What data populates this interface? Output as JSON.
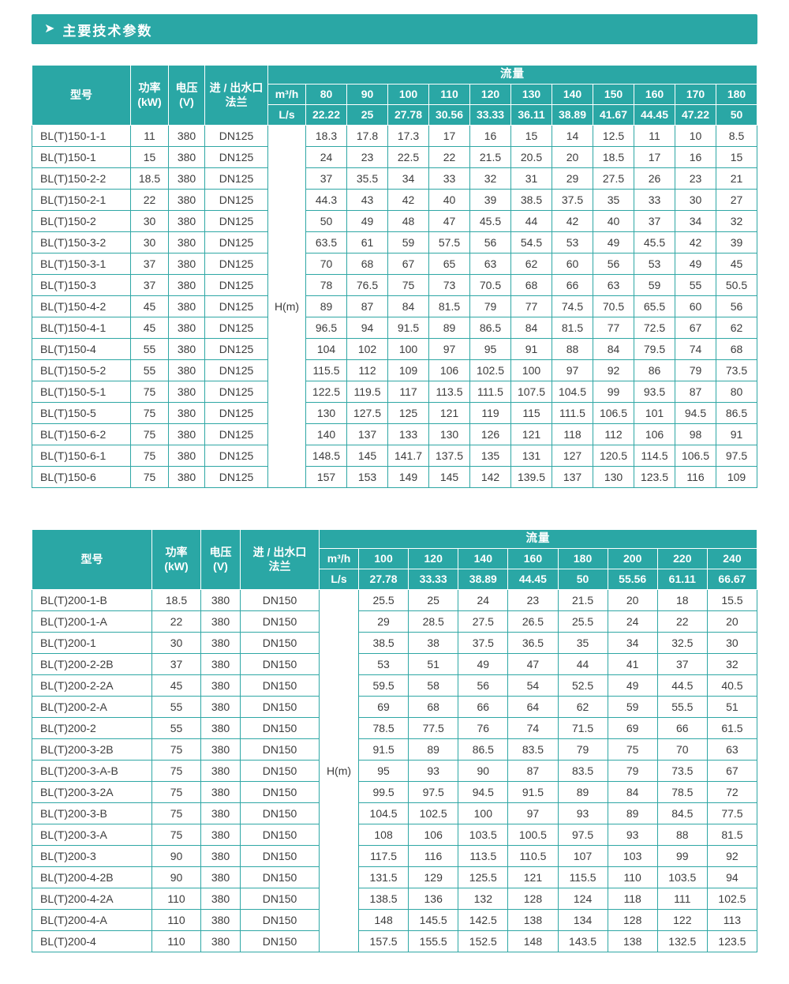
{
  "page": {
    "title": "主要技术参数",
    "arrow_icon": "➤",
    "accent_color": "#2aa7a5"
  },
  "table1": {
    "headers": {
      "model": "型号",
      "power": "功率\n(kW)",
      "voltage": "电压\n(V)",
      "flange": "进 / 出水口\n法兰",
      "flow": "流量",
      "m3h_label": "m³/h",
      "ls_label": "L/s",
      "head_label": "H(m)"
    },
    "m3h_values": [
      "80",
      "90",
      "100",
      "110",
      "120",
      "130",
      "140",
      "150",
      "160",
      "170",
      "180"
    ],
    "ls_values": [
      "22.22",
      "25",
      "27.78",
      "30.56",
      "33.33",
      "36.11",
      "38.89",
      "41.67",
      "44.45",
      "47.22",
      "50"
    ],
    "rows": [
      {
        "model": "BL(T)150-1-1",
        "power": "11",
        "voltage": "380",
        "flange": "DN125",
        "values": [
          "18.3",
          "17.8",
          "17.3",
          "17",
          "16",
          "15",
          "14",
          "12.5",
          "11",
          "10",
          "8.5"
        ]
      },
      {
        "model": "BL(T)150-1",
        "power": "15",
        "voltage": "380",
        "flange": "DN125",
        "values": [
          "24",
          "23",
          "22.5",
          "22",
          "21.5",
          "20.5",
          "20",
          "18.5",
          "17",
          "16",
          "15"
        ]
      },
      {
        "model": "BL(T)150-2-2",
        "power": "18.5",
        "voltage": "380",
        "flange": "DN125",
        "values": [
          "37",
          "35.5",
          "34",
          "33",
          "32",
          "31",
          "29",
          "27.5",
          "26",
          "23",
          "21"
        ]
      },
      {
        "model": "BL(T)150-2-1",
        "power": "22",
        "voltage": "380",
        "flange": "DN125",
        "values": [
          "44.3",
          "43",
          "42",
          "40",
          "39",
          "38.5",
          "37.5",
          "35",
          "33",
          "30",
          "27"
        ]
      },
      {
        "model": "BL(T)150-2",
        "power": "30",
        "voltage": "380",
        "flange": "DN125",
        "values": [
          "50",
          "49",
          "48",
          "47",
          "45.5",
          "44",
          "42",
          "40",
          "37",
          "34",
          "32"
        ]
      },
      {
        "model": "BL(T)150-3-2",
        "power": "30",
        "voltage": "380",
        "flange": "DN125",
        "values": [
          "63.5",
          "61",
          "59",
          "57.5",
          "56",
          "54.5",
          "53",
          "49",
          "45.5",
          "42",
          "39"
        ]
      },
      {
        "model": "BL(T)150-3-1",
        "power": "37",
        "voltage": "380",
        "flange": "DN125",
        "values": [
          "70",
          "68",
          "67",
          "65",
          "63",
          "62",
          "60",
          "56",
          "53",
          "49",
          "45"
        ]
      },
      {
        "model": "BL(T)150-3",
        "power": "37",
        "voltage": "380",
        "flange": "DN125",
        "values": [
          "78",
          "76.5",
          "75",
          "73",
          "70.5",
          "68",
          "66",
          "63",
          "59",
          "55",
          "50.5"
        ]
      },
      {
        "model": "BL(T)150-4-2",
        "power": "45",
        "voltage": "380",
        "flange": "DN125",
        "values": [
          "89",
          "87",
          "84",
          "81.5",
          "79",
          "77",
          "74.5",
          "70.5",
          "65.5",
          "60",
          "56"
        ]
      },
      {
        "model": "BL(T)150-4-1",
        "power": "45",
        "voltage": "380",
        "flange": "DN125",
        "values": [
          "96.5",
          "94",
          "91.5",
          "89",
          "86.5",
          "84",
          "81.5",
          "77",
          "72.5",
          "67",
          "62"
        ]
      },
      {
        "model": "BL(T)150-4",
        "power": "55",
        "voltage": "380",
        "flange": "DN125",
        "values": [
          "104",
          "102",
          "100",
          "97",
          "95",
          "91",
          "88",
          "84",
          "79.5",
          "74",
          "68"
        ]
      },
      {
        "model": "BL(T)150-5-2",
        "power": "55",
        "voltage": "380",
        "flange": "DN125",
        "values": [
          "115.5",
          "112",
          "109",
          "106",
          "102.5",
          "100",
          "97",
          "92",
          "86",
          "79",
          "73.5"
        ]
      },
      {
        "model": "BL(T)150-5-1",
        "power": "75",
        "voltage": "380",
        "flange": "DN125",
        "values": [
          "122.5",
          "119.5",
          "117",
          "113.5",
          "111.5",
          "107.5",
          "104.5",
          "99",
          "93.5",
          "87",
          "80"
        ]
      },
      {
        "model": "BL(T)150-5",
        "power": "75",
        "voltage": "380",
        "flange": "DN125",
        "values": [
          "130",
          "127.5",
          "125",
          "121",
          "119",
          "115",
          "111.5",
          "106.5",
          "101",
          "94.5",
          "86.5"
        ]
      },
      {
        "model": "BL(T)150-6-2",
        "power": "75",
        "voltage": "380",
        "flange": "DN125",
        "values": [
          "140",
          "137",
          "133",
          "130",
          "126",
          "121",
          "118",
          "112",
          "106",
          "98",
          "91"
        ]
      },
      {
        "model": "BL(T)150-6-1",
        "power": "75",
        "voltage": "380",
        "flange": "DN125",
        "values": [
          "148.5",
          "145",
          "141.7",
          "137.5",
          "135",
          "131",
          "127",
          "120.5",
          "114.5",
          "106.5",
          "97.5"
        ]
      },
      {
        "model": "BL(T)150-6",
        "power": "75",
        "voltage": "380",
        "flange": "DN125",
        "values": [
          "157",
          "153",
          "149",
          "145",
          "142",
          "139.5",
          "137",
          "130",
          "123.5",
          "116",
          "109"
        ]
      }
    ]
  },
  "table2": {
    "headers": {
      "model": "型号",
      "power": "功率\n(kW)",
      "voltage": "电压\n(V)",
      "flange": "进 / 出水口\n法兰",
      "flow": "流量",
      "m3h_label": "m³/h",
      "ls_label": "L/s",
      "head_label": "H(m)"
    },
    "m3h_values": [
      "100",
      "120",
      "140",
      "160",
      "180",
      "200",
      "220",
      "240"
    ],
    "ls_values": [
      "27.78",
      "33.33",
      "38.89",
      "44.45",
      "50",
      "55.56",
      "61.11",
      "66.67"
    ],
    "rows": [
      {
        "model": "BL(T)200-1-B",
        "power": "18.5",
        "voltage": "380",
        "flange": "DN150",
        "values": [
          "25.5",
          "25",
          "24",
          "23",
          "21.5",
          "20",
          "18",
          "15.5"
        ]
      },
      {
        "model": "BL(T)200-1-A",
        "power": "22",
        "voltage": "380",
        "flange": "DN150",
        "values": [
          "29",
          "28.5",
          "27.5",
          "26.5",
          "25.5",
          "24",
          "22",
          "20"
        ]
      },
      {
        "model": "BL(T)200-1",
        "power": "30",
        "voltage": "380",
        "flange": "DN150",
        "values": [
          "38.5",
          "38",
          "37.5",
          "36.5",
          "35",
          "34",
          "32.5",
          "30"
        ]
      },
      {
        "model": "BL(T)200-2-2B",
        "power": "37",
        "voltage": "380",
        "flange": "DN150",
        "values": [
          "53",
          "51",
          "49",
          "47",
          "44",
          "41",
          "37",
          "32"
        ]
      },
      {
        "model": "BL(T)200-2-2A",
        "power": "45",
        "voltage": "380",
        "flange": "DN150",
        "values": [
          "59.5",
          "58",
          "56",
          "54",
          "52.5",
          "49",
          "44.5",
          "40.5"
        ]
      },
      {
        "model": "BL(T)200-2-A",
        "power": "55",
        "voltage": "380",
        "flange": "DN150",
        "values": [
          "69",
          "68",
          "66",
          "64",
          "62",
          "59",
          "55.5",
          "51"
        ]
      },
      {
        "model": "BL(T)200-2",
        "power": "55",
        "voltage": "380",
        "flange": "DN150",
        "values": [
          "78.5",
          "77.5",
          "76",
          "74",
          "71.5",
          "69",
          "66",
          "61.5"
        ]
      },
      {
        "model": "BL(T)200-3-2B",
        "power": "75",
        "voltage": "380",
        "flange": "DN150",
        "values": [
          "91.5",
          "89",
          "86.5",
          "83.5",
          "79",
          "75",
          "70",
          "63"
        ]
      },
      {
        "model": "BL(T)200-3-A-B",
        "power": "75",
        "voltage": "380",
        "flange": "DN150",
        "values": [
          "95",
          "93",
          "90",
          "87",
          "83.5",
          "79",
          "73.5",
          "67"
        ]
      },
      {
        "model": "BL(T)200-3-2A",
        "power": "75",
        "voltage": "380",
        "flange": "DN150",
        "values": [
          "99.5",
          "97.5",
          "94.5",
          "91.5",
          "89",
          "84",
          "78.5",
          "72"
        ]
      },
      {
        "model": "BL(T)200-3-B",
        "power": "75",
        "voltage": "380",
        "flange": "DN150",
        "values": [
          "104.5",
          "102.5",
          "100",
          "97",
          "93",
          "89",
          "84.5",
          "77.5"
        ]
      },
      {
        "model": "BL(T)200-3-A",
        "power": "75",
        "voltage": "380",
        "flange": "DN150",
        "values": [
          "108",
          "106",
          "103.5",
          "100.5",
          "97.5",
          "93",
          "88",
          "81.5"
        ]
      },
      {
        "model": "BL(T)200-3",
        "power": "90",
        "voltage": "380",
        "flange": "DN150",
        "values": [
          "117.5",
          "116",
          "113.5",
          "110.5",
          "107",
          "103",
          "99",
          "92"
        ]
      },
      {
        "model": "BL(T)200-4-2B",
        "power": "90",
        "voltage": "380",
        "flange": "DN150",
        "values": [
          "131.5",
          "129",
          "125.5",
          "121",
          "115.5",
          "110",
          "103.5",
          "94"
        ]
      },
      {
        "model": "BL(T)200-4-2A",
        "power": "110",
        "voltage": "380",
        "flange": "DN150",
        "values": [
          "138.5",
          "136",
          "132",
          "128",
          "124",
          "118",
          "111",
          "102.5"
        ]
      },
      {
        "model": "BL(T)200-4-A",
        "power": "110",
        "voltage": "380",
        "flange": "DN150",
        "values": [
          "148",
          "145.5",
          "142.5",
          "138",
          "134",
          "128",
          "122",
          "113"
        ]
      },
      {
        "model": "BL(T)200-4",
        "power": "110",
        "voltage": "380",
        "flange": "DN150",
        "values": [
          "157.5",
          "155.5",
          "152.5",
          "148",
          "143.5",
          "138",
          "132.5",
          "123.5"
        ]
      }
    ]
  }
}
